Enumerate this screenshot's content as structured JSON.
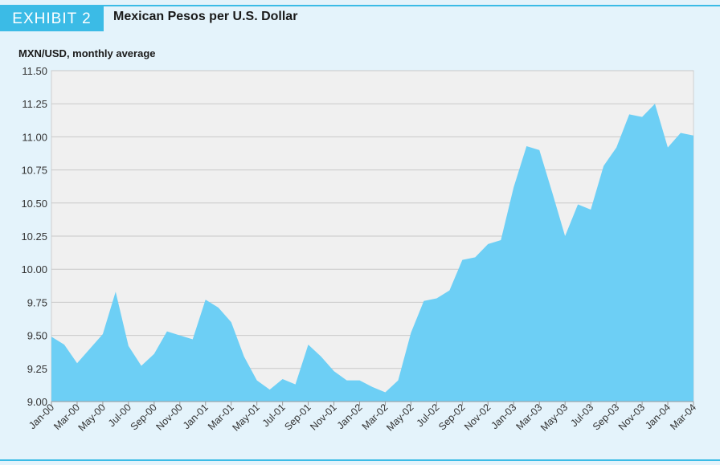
{
  "header": {
    "exhibit_label": "EXHIBIT 2",
    "title": "Mexican Pesos per U.S. Dollar",
    "units": "MXN/USD, monthly average"
  },
  "colors": {
    "accent": "#3bbbe6",
    "area_fill": "#6dcff5",
    "background": "#e4f3fb",
    "plot_background": "#f0f0f0",
    "grid": "#c8c8c8"
  },
  "chart_data": {
    "type": "area",
    "title": "Mexican Pesos per U.S. Dollar",
    "ylabel": "MXN/USD, monthly average",
    "xlabel": "",
    "ylim": [
      9.0,
      11.5
    ],
    "yticks": [
      "9.00",
      "9.25",
      "9.50",
      "9.75",
      "10.00",
      "10.25",
      "10.50",
      "10.75",
      "11.00",
      "11.25",
      "11.50"
    ],
    "grid": true,
    "x": [
      "Jan-00",
      "Feb-00",
      "Mar-00",
      "Apr-00",
      "May-00",
      "Jun-00",
      "Jul-00",
      "Aug-00",
      "Sep-00",
      "Oct-00",
      "Nov-00",
      "Dec-00",
      "Jan-01",
      "Feb-01",
      "Mar-01",
      "Apr-01",
      "May-01",
      "Jun-01",
      "Jul-01",
      "Aug-01",
      "Sep-01",
      "Oct-01",
      "Nov-01",
      "Dec-01",
      "Jan-02",
      "Feb-02",
      "Mar-02",
      "Apr-02",
      "May-02",
      "Jun-02",
      "Jul-02",
      "Aug-02",
      "Sep-02",
      "Oct-02",
      "Nov-02",
      "Dec-02",
      "Jan-03",
      "Feb-03",
      "Mar-03",
      "Apr-03",
      "May-03",
      "Jun-03",
      "Jul-03",
      "Aug-03",
      "Sep-03",
      "Oct-03",
      "Nov-03",
      "Dec-03",
      "Jan-04",
      "Feb-04",
      "Mar-04"
    ],
    "xtick_labels": [
      "Jan-00",
      "Mar-00",
      "May-00",
      "Jul-00",
      "Sep-00",
      "Nov-00",
      "Jan-01",
      "Mar-01",
      "May-01",
      "Jul-01",
      "Sep-01",
      "Nov-01",
      "Jan-02",
      "Mar-02",
      "May-02",
      "Jul-02",
      "Sep-02",
      "Nov-02",
      "Jan-03",
      "Mar-03",
      "May-03",
      "Jul-03",
      "Sep-03",
      "Nov-03",
      "Jan-04",
      "Mar-04"
    ],
    "series": [
      {
        "name": "MXN/USD",
        "values": [
          9.49,
          9.43,
          9.29,
          9.4,
          9.51,
          9.83,
          9.42,
          9.27,
          9.36,
          9.53,
          9.5,
          9.47,
          9.77,
          9.71,
          9.6,
          9.34,
          9.16,
          9.09,
          9.17,
          9.13,
          9.43,
          9.34,
          9.23,
          9.16,
          9.16,
          9.11,
          9.07,
          9.16,
          9.52,
          9.76,
          9.78,
          9.84,
          10.07,
          10.09,
          10.19,
          10.22,
          10.62,
          10.93,
          10.9,
          10.58,
          10.25,
          10.49,
          10.45,
          10.78,
          10.92,
          11.17,
          11.15,
          11.25,
          10.92,
          11.03,
          11.01
        ]
      }
    ]
  }
}
